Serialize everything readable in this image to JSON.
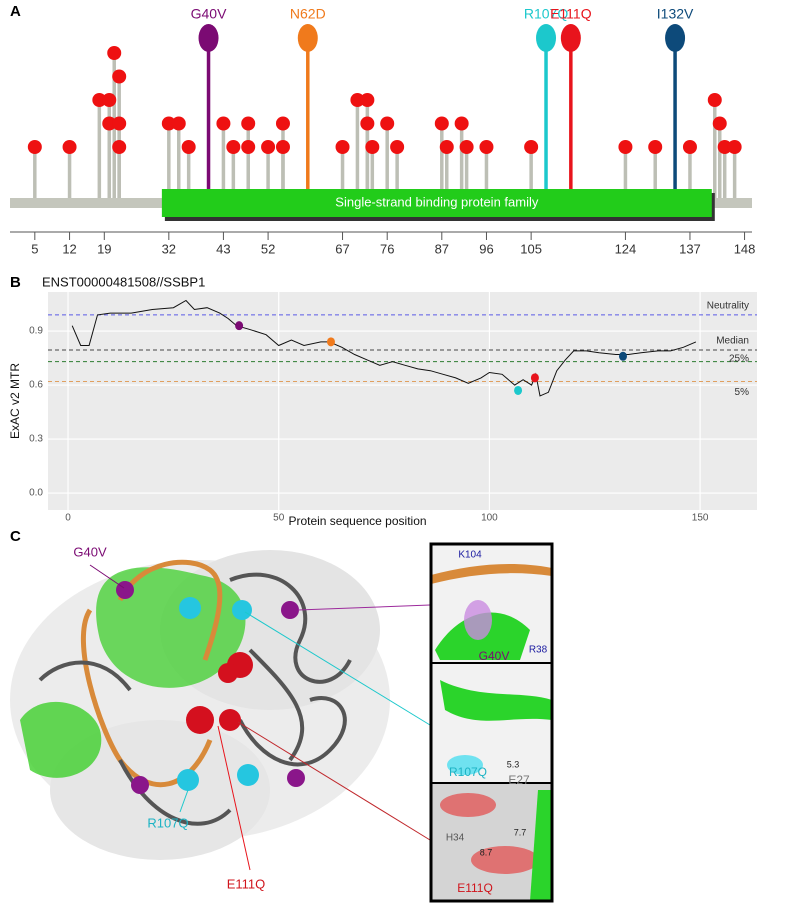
{
  "panel_labels": [
    "A",
    "B",
    "C"
  ],
  "chart_data": [
    {
      "type": "lollipop",
      "xlim": [
        0,
        149.5
      ],
      "xticks": [
        5,
        12,
        19,
        32,
        43,
        52,
        67,
        76,
        87,
        96,
        105,
        124,
        137,
        148
      ],
      "domain": {
        "label": "Single-strand binding protein family",
        "start": 30.6,
        "end": 141.4,
        "color": "#22cc1a"
      },
      "variants": {
        "color": "#ee1111",
        "x": [
          5,
          12,
          18,
          20,
          20,
          21,
          22,
          22,
          22,
          32,
          34,
          36,
          43,
          45,
          48,
          48,
          52,
          55,
          55,
          67,
          70,
          72,
          72,
          73,
          76,
          78,
          87,
          88,
          91,
          92,
          96,
          105,
          124,
          130,
          137,
          142,
          143,
          144,
          146
        ],
        "values": [
          1,
          1,
          3,
          2,
          3,
          5,
          4,
          2,
          1,
          2,
          2,
          1,
          2,
          1,
          2,
          1,
          1,
          2,
          1,
          1,
          3,
          3,
          2,
          1,
          2,
          1,
          2,
          1,
          2,
          1,
          1,
          1,
          1,
          1,
          1,
          3,
          2,
          1,
          1
        ]
      },
      "mutations": [
        {
          "label": "G40V",
          "position": 40,
          "color": "#7b0a73"
        },
        {
          "label": "N62D",
          "position": 60,
          "color": "#f07a1c"
        },
        {
          "label": "R107Q",
          "position": 108,
          "color": "#1cc8cc"
        },
        {
          "label": "E111Q",
          "position": 113,
          "color": "#e8141c"
        },
        {
          "label": "I132V",
          "position": 134,
          "color": "#0d4a7a"
        }
      ]
    },
    {
      "type": "line",
      "title": "ENST00000481508//SSBP1",
      "x_label": "Protein sequence position",
      "y_label": "ExAC v2 MTR",
      "xlim": [
        -4.75,
        163.5
      ],
      "ylim": [
        -0.094,
        1.117
      ],
      "xticks": [
        0,
        50,
        100,
        150
      ],
      "yticks": [
        {
          "value": 0,
          "label": "0.0"
        },
        0.3,
        0.6,
        0.9
      ],
      "grid": true,
      "color": "#111111",
      "x": [
        1,
        3,
        5,
        7,
        10,
        15,
        20,
        25,
        28,
        30,
        33,
        36,
        38,
        40,
        43,
        47,
        50,
        53,
        56,
        60,
        62,
        65,
        68,
        71,
        74,
        77,
        80,
        83,
        86,
        89,
        92,
        95,
        98,
        100,
        103,
        106,
        108,
        110,
        111,
        112,
        114,
        116,
        118,
        120,
        123,
        126,
        130,
        133,
        136,
        140,
        143,
        146,
        149
      ],
      "values": [
        0.93,
        0.82,
        0.82,
        0.99,
        1.0,
        1.0,
        1.02,
        1.03,
        1.07,
        1.02,
        1.03,
        1.0,
        0.97,
        0.93,
        0.91,
        0.88,
        0.82,
        0.85,
        0.82,
        0.84,
        0.84,
        0.81,
        0.77,
        0.74,
        0.71,
        0.73,
        0.71,
        0.69,
        0.68,
        0.66,
        0.64,
        0.61,
        0.64,
        0.67,
        0.66,
        0.6,
        0.63,
        0.6,
        0.66,
        0.54,
        0.56,
        0.68,
        0.74,
        0.79,
        0.79,
        0.78,
        0.77,
        0.77,
        0.78,
        0.79,
        0.79,
        0.81,
        0.84
      ],
      "reference_lines": [
        {
          "label": "Neutrality",
          "value": 0.99,
          "color": "#5a5ae6"
        },
        {
          "label": "Median",
          "value": 0.795,
          "color": "#444444"
        },
        {
          "label": "25%",
          "value": 0.73,
          "color": "#2e7d32"
        },
        {
          "label": "5%",
          "value": 0.62,
          "color": "#e0a060"
        }
      ],
      "highlights": [
        {
          "x": 40.6,
          "value": 0.93,
          "color": "#7b0a73"
        },
        {
          "x": 62.4,
          "value": 0.84,
          "color": "#f07a1c"
        },
        {
          "x": 106.8,
          "value": 0.57,
          "color": "#1cc8cc"
        },
        {
          "x": 110.8,
          "value": 0.64,
          "color": "#e8141c"
        },
        {
          "x": 131.7,
          "value": 0.76,
          "color": "#0d4a7a"
        }
      ]
    }
  ],
  "structure": {
    "labels": {
      "g40v": "G40V",
      "r107q": "R107Q",
      "e111q": "E111Q"
    },
    "inset_top": {
      "k104": "K104",
      "r38": "R38",
      "mutation": "G40V"
    },
    "inset_middle": {
      "distance": "5.3",
      "mutation": "R107Q",
      "e27": "E27"
    },
    "inset_bottom": {
      "h34": "H34",
      "distance_1": "7.7",
      "distance_2": "8.7",
      "mutation": "E111Q"
    }
  }
}
